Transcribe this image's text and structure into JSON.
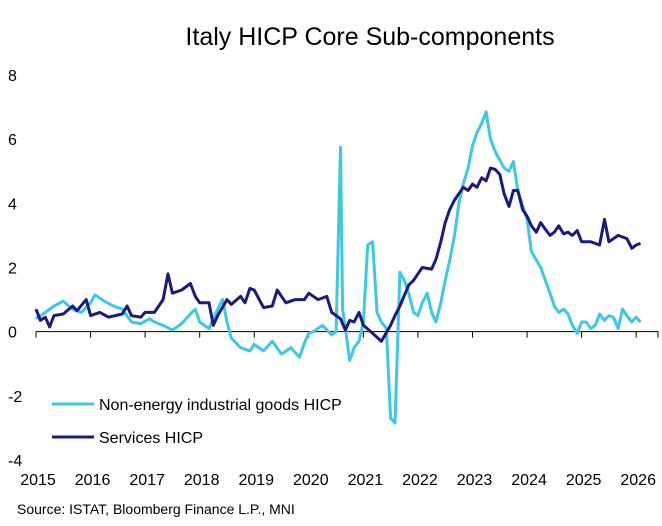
{
  "chart_data": {
    "type": "line",
    "title": "Italy HICP Core Sub-components",
    "source": "Source: ISTAT,  Bloomberg Finance L.P., MNI",
    "xlabel": "",
    "ylabel": "",
    "ylim": [
      -4,
      8
    ],
    "yticks": [
      -4,
      -2,
      0,
      2,
      4,
      6,
      8
    ],
    "ytick_labels": [
      "-4",
      "-2",
      "0",
      "2",
      "4",
      "6",
      "8"
    ],
    "xlim": [
      2015,
      2026.4
    ],
    "xticks": [
      2015,
      2016,
      2017,
      2018,
      2019,
      2020,
      2021,
      2022,
      2023,
      2024,
      2025,
      2026
    ],
    "xtick_labels": [
      "2015",
      "2016",
      "2017",
      "2018",
      "2019",
      "2020",
      "2021",
      "2022",
      "2023",
      "2024",
      "2025",
      "2026"
    ],
    "grid": false,
    "legend_position": "bottom-left",
    "series": [
      {
        "name": "Non-energy industrial goods HICP",
        "color": "#3CC8E8",
        "points": [
          [
            2015.0,
            0.4
          ],
          [
            2015.17,
            0.6
          ],
          [
            2015.33,
            0.8
          ],
          [
            2015.5,
            0.95
          ],
          [
            2015.67,
            0.7
          ],
          [
            2015.83,
            0.6
          ],
          [
            2016.0,
            0.9
          ],
          [
            2016.08,
            1.15
          ],
          [
            2016.25,
            0.95
          ],
          [
            2016.42,
            0.8
          ],
          [
            2016.58,
            0.7
          ],
          [
            2016.75,
            0.3
          ],
          [
            2016.92,
            0.25
          ],
          [
            2017.08,
            0.4
          ],
          [
            2017.17,
            0.3
          ],
          [
            2017.33,
            0.2
          ],
          [
            2017.5,
            0.05
          ],
          [
            2017.67,
            0.25
          ],
          [
            2017.83,
            0.55
          ],
          [
            2017.92,
            0.7
          ],
          [
            2018.0,
            0.3
          ],
          [
            2018.17,
            0.1
          ],
          [
            2018.33,
            0.7
          ],
          [
            2018.42,
            1.0
          ],
          [
            2018.5,
            0.3
          ],
          [
            2018.58,
            -0.2
          ],
          [
            2018.75,
            -0.5
          ],
          [
            2018.92,
            -0.6
          ],
          [
            2019.0,
            -0.4
          ],
          [
            2019.17,
            -0.6
          ],
          [
            2019.33,
            -0.3
          ],
          [
            2019.5,
            -0.7
          ],
          [
            2019.67,
            -0.5
          ],
          [
            2019.83,
            -0.8
          ],
          [
            2019.92,
            -0.35
          ],
          [
            2020.0,
            -0.05
          ],
          [
            2020.08,
            0.0
          ],
          [
            2020.25,
            0.2
          ],
          [
            2020.42,
            -0.1
          ],
          [
            2020.5,
            0.0
          ],
          [
            2020.58,
            5.75
          ],
          [
            2020.62,
            0.7
          ],
          [
            2020.67,
            0.1
          ],
          [
            2020.75,
            -0.9
          ],
          [
            2020.83,
            -0.5
          ],
          [
            2020.92,
            -0.3
          ],
          [
            2021.0,
            0.3
          ],
          [
            2021.08,
            2.7
          ],
          [
            2021.17,
            2.8
          ],
          [
            2021.25,
            0.6
          ],
          [
            2021.33,
            0.3
          ],
          [
            2021.42,
            0.1
          ],
          [
            2021.5,
            -2.7
          ],
          [
            2021.58,
            -2.85
          ],
          [
            2021.67,
            1.85
          ],
          [
            2021.75,
            1.6
          ],
          [
            2021.83,
            1.2
          ],
          [
            2021.92,
            0.6
          ],
          [
            2022.0,
            0.5
          ],
          [
            2022.08,
            0.9
          ],
          [
            2022.17,
            1.2
          ],
          [
            2022.25,
            0.6
          ],
          [
            2022.33,
            0.3
          ],
          [
            2022.42,
            0.9
          ],
          [
            2022.5,
            1.6
          ],
          [
            2022.58,
            2.2
          ],
          [
            2022.67,
            3.0
          ],
          [
            2022.75,
            4.0
          ],
          [
            2022.83,
            4.6
          ],
          [
            2022.92,
            5.1
          ],
          [
            2023.0,
            5.8
          ],
          [
            2023.08,
            6.2
          ],
          [
            2023.17,
            6.5
          ],
          [
            2023.25,
            6.85
          ],
          [
            2023.33,
            6.0
          ],
          [
            2023.42,
            5.6
          ],
          [
            2023.58,
            5.1
          ],
          [
            2023.67,
            5.0
          ],
          [
            2023.75,
            5.3
          ],
          [
            2023.83,
            4.4
          ],
          [
            2024.0,
            3.5
          ],
          [
            2024.08,
            2.5
          ],
          [
            2024.25,
            2.0
          ],
          [
            2024.42,
            1.2
          ],
          [
            2024.5,
            0.8
          ],
          [
            2024.58,
            0.6
          ],
          [
            2024.67,
            0.7
          ],
          [
            2024.75,
            0.55
          ],
          [
            2024.83,
            0.2
          ],
          [
            2024.92,
            -0.05
          ],
          [
            2025.0,
            0.3
          ],
          [
            2025.08,
            0.3
          ],
          [
            2025.17,
            0.1
          ],
          [
            2025.25,
            0.2
          ],
          [
            2025.33,
            0.55
          ],
          [
            2025.42,
            0.35
          ],
          [
            2025.5,
            0.5
          ],
          [
            2025.58,
            0.45
          ],
          [
            2025.67,
            0.1
          ],
          [
            2025.75,
            0.7
          ],
          [
            2025.83,
            0.5
          ],
          [
            2025.92,
            0.3
          ],
          [
            2026.0,
            0.45
          ],
          [
            2026.08,
            0.3
          ]
        ]
      },
      {
        "name": "Services HICP",
        "color": "#1A1A80",
        "points": [
          [
            2015.0,
            0.7
          ],
          [
            2015.08,
            0.35
          ],
          [
            2015.17,
            0.45
          ],
          [
            2015.25,
            0.15
          ],
          [
            2015.33,
            0.5
          ],
          [
            2015.5,
            0.55
          ],
          [
            2015.67,
            0.8
          ],
          [
            2015.75,
            0.65
          ],
          [
            2015.92,
            1.0
          ],
          [
            2016.0,
            0.5
          ],
          [
            2016.17,
            0.6
          ],
          [
            2016.33,
            0.45
          ],
          [
            2016.58,
            0.55
          ],
          [
            2016.67,
            0.8
          ],
          [
            2016.75,
            0.5
          ],
          [
            2016.92,
            0.45
          ],
          [
            2017.0,
            0.6
          ],
          [
            2017.17,
            0.6
          ],
          [
            2017.33,
            1.0
          ],
          [
            2017.42,
            1.8
          ],
          [
            2017.5,
            1.2
          ],
          [
            2017.67,
            1.3
          ],
          [
            2017.83,
            1.5
          ],
          [
            2017.92,
            1.1
          ],
          [
            2018.0,
            0.9
          ],
          [
            2018.17,
            0.9
          ],
          [
            2018.25,
            0.2
          ],
          [
            2018.33,
            0.5
          ],
          [
            2018.5,
            1.0
          ],
          [
            2018.58,
            0.85
          ],
          [
            2018.75,
            1.1
          ],
          [
            2018.83,
            0.9
          ],
          [
            2018.92,
            1.35
          ],
          [
            2019.0,
            1.3
          ],
          [
            2019.17,
            0.75
          ],
          [
            2019.33,
            0.8
          ],
          [
            2019.42,
            1.3
          ],
          [
            2019.58,
            0.9
          ],
          [
            2019.75,
            1.0
          ],
          [
            2019.92,
            1.0
          ],
          [
            2020.0,
            1.2
          ],
          [
            2020.17,
            1.0
          ],
          [
            2020.33,
            1.1
          ],
          [
            2020.42,
            0.6
          ],
          [
            2020.58,
            0.4
          ],
          [
            2020.67,
            0.05
          ],
          [
            2020.75,
            0.35
          ],
          [
            2020.83,
            0.3
          ],
          [
            2020.92,
            0.6
          ],
          [
            2021.0,
            0.2
          ],
          [
            2021.17,
            -0.05
          ],
          [
            2021.33,
            -0.3
          ],
          [
            2021.5,
            0.2
          ],
          [
            2021.58,
            0.5
          ],
          [
            2021.67,
            0.8
          ],
          [
            2021.83,
            1.45
          ],
          [
            2021.92,
            1.6
          ],
          [
            2022.0,
            1.8
          ],
          [
            2022.08,
            2.0
          ],
          [
            2022.25,
            1.95
          ],
          [
            2022.33,
            2.25
          ],
          [
            2022.42,
            2.8
          ],
          [
            2022.5,
            3.4
          ],
          [
            2022.58,
            3.8
          ],
          [
            2022.67,
            4.1
          ],
          [
            2022.75,
            4.3
          ],
          [
            2022.83,
            4.5
          ],
          [
            2022.92,
            4.4
          ],
          [
            2023.0,
            4.6
          ],
          [
            2023.08,
            4.5
          ],
          [
            2023.17,
            4.8
          ],
          [
            2023.25,
            4.7
          ],
          [
            2023.33,
            5.1
          ],
          [
            2023.42,
            5.05
          ],
          [
            2023.5,
            4.9
          ],
          [
            2023.58,
            4.3
          ],
          [
            2023.67,
            3.9
          ],
          [
            2023.75,
            4.4
          ],
          [
            2023.83,
            4.4
          ],
          [
            2023.92,
            3.8
          ],
          [
            2024.0,
            3.6
          ],
          [
            2024.08,
            3.3
          ],
          [
            2024.17,
            3.1
          ],
          [
            2024.25,
            3.4
          ],
          [
            2024.33,
            3.2
          ],
          [
            2024.42,
            3.0
          ],
          [
            2024.5,
            3.1
          ],
          [
            2024.58,
            3.3
          ],
          [
            2024.67,
            3.05
          ],
          [
            2024.75,
            3.1
          ],
          [
            2024.83,
            3.0
          ],
          [
            2024.92,
            3.15
          ],
          [
            2025.0,
            2.8
          ],
          [
            2025.17,
            2.8
          ],
          [
            2025.33,
            2.7
          ],
          [
            2025.42,
            3.5
          ],
          [
            2025.5,
            2.8
          ],
          [
            2025.67,
            3.0
          ],
          [
            2025.83,
            2.9
          ],
          [
            2025.92,
            2.6
          ],
          [
            2026.0,
            2.7
          ],
          [
            2026.08,
            2.75
          ]
        ]
      }
    ]
  }
}
